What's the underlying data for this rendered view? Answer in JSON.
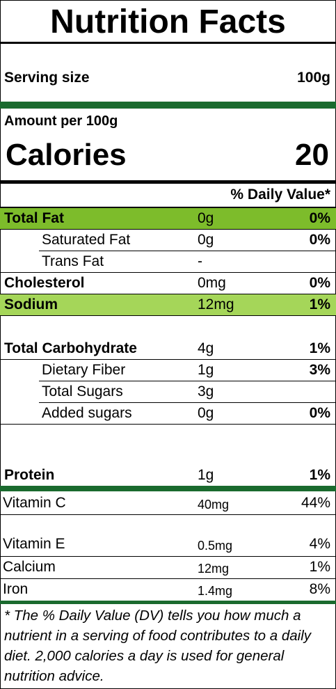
{
  "title": "Nutrition Facts",
  "serving": {
    "label": "Serving size",
    "value": "100g"
  },
  "amount_per": "Amount per 100g",
  "calories": {
    "label": "Calories",
    "value": "20"
  },
  "daily_value_header": "% Daily Value*",
  "nutrients": [
    {
      "name": "Total Fat",
      "amount": "0g",
      "dv": "0%"
    },
    {
      "name": "Saturated Fat",
      "amount": "0g",
      "dv": "0%"
    },
    {
      "name": "Trans Fat",
      "amount": "-",
      "dv": ""
    },
    {
      "name": "Cholesterol",
      "amount": "0mg",
      "dv": "0%"
    },
    {
      "name": "Sodium",
      "amount": "12mg",
      "dv": "1%"
    },
    {
      "name": "Total Carbohydrate",
      "amount": "4g",
      "dv": "1%"
    },
    {
      "name": "Dietary Fiber",
      "amount": "1g",
      "dv": "3%"
    },
    {
      "name": "Total Sugars",
      "amount": "3g",
      "dv": ""
    },
    {
      "name": "Added sugars",
      "amount": "0g",
      "dv": "0%"
    },
    {
      "name": "Protein",
      "amount": "1g",
      "dv": "1%"
    },
    {
      "name": "Vitamin C",
      "amount": "40mg",
      "dv": "44%"
    },
    {
      "name": "Vitamin E",
      "amount": "0.5mg",
      "dv": "4%"
    },
    {
      "name": "Calcium",
      "amount": "12mg",
      "dv": "1%"
    },
    {
      "name": "Iron",
      "amount": "1.4mg",
      "dv": "8%"
    }
  ],
  "footnote": "* The % Daily Value (DV) tells you how much a nutrient in a serving of food contributes to a daily diet. 2,000 calories a day is used for general nutrition advice.",
  "colors": {
    "green_band": "#1a6a2e",
    "highlight": "#7dbc2b",
    "highlight_light": "#a5d659"
  }
}
